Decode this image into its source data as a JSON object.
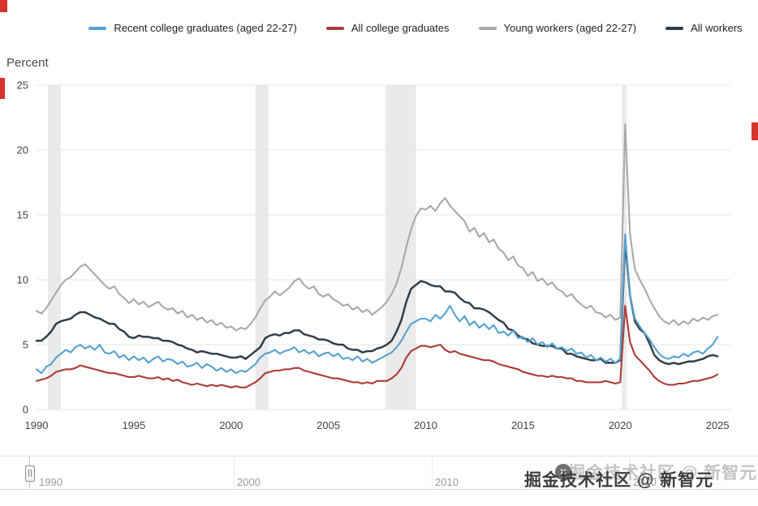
{
  "legend": {
    "items": [
      {
        "id": "recent-college-graduates",
        "label": "Recent college graduates (aged 22-27)",
        "color": "#55a1d1"
      },
      {
        "id": "all-college-graduates",
        "label": "All college graduates",
        "color": "#aa3c38"
      },
      {
        "id": "young-workers",
        "label": "Young workers (aged 22-27)",
        "color": "#a9a9a9"
      },
      {
        "id": "all-workers",
        "label": "All workers",
        "color": "#333e48"
      }
    ]
  },
  "chart_data": {
    "type": "line",
    "title": "",
    "xlabel": "",
    "ylabel": "Percent",
    "xlim": [
      1990,
      2025.66
    ],
    "ylim": [
      0,
      25
    ],
    "yticks": [
      0,
      5,
      10,
      15,
      20,
      25
    ],
    "xticks": [
      1990,
      1995,
      2000,
      2005,
      2010,
      2015,
      2020,
      2025
    ],
    "grid": "horizontal",
    "grid_color": "#e6e6e6",
    "recession_color": "#eaeaea",
    "recessions": [
      [
        1990.58,
        1991.25
      ],
      [
        2001.25,
        2001.92
      ],
      [
        2007.92,
        2009.5
      ],
      [
        2020.08,
        2020.33
      ]
    ],
    "x_start": 1990.0,
    "x_step": 0.25,
    "series": [
      {
        "id": "recent-college-graduates",
        "name": "Recent college graduates (aged 22-27)",
        "color": "#55a1d1",
        "width": 2.1,
        "z": 3,
        "values": [
          3.1,
          2.8,
          3.3,
          3.5,
          4.0,
          4.3,
          4.6,
          4.4,
          4.8,
          5.0,
          4.7,
          4.9,
          4.6,
          5.0,
          4.4,
          4.3,
          4.5,
          4.0,
          4.2,
          3.8,
          4.1,
          3.8,
          4.0,
          3.6,
          3.9,
          4.1,
          3.7,
          3.9,
          3.8,
          3.5,
          3.7,
          3.3,
          3.4,
          3.6,
          3.2,
          3.5,
          3.3,
          3.0,
          3.2,
          2.9,
          3.1,
          2.8,
          3.0,
          2.9,
          3.2,
          3.5,
          4.0,
          4.3,
          4.4,
          4.6,
          4.3,
          4.5,
          4.6,
          4.8,
          4.4,
          4.6,
          4.3,
          4.5,
          4.1,
          4.3,
          4.4,
          4.1,
          4.3,
          3.9,
          4.0,
          3.8,
          4.1,
          3.7,
          3.9,
          3.6,
          3.8,
          4.0,
          4.2,
          4.4,
          4.8,
          5.3,
          6.0,
          6.6,
          6.8,
          7.0,
          7.0,
          6.8,
          7.3,
          7.0,
          7.4,
          8.0,
          7.3,
          6.8,
          7.2,
          6.5,
          6.8,
          6.3,
          6.6,
          6.2,
          6.5,
          5.9,
          6.0,
          5.7,
          6.1,
          5.5,
          5.6,
          5.2,
          5.5,
          5.0,
          5.2,
          4.8,
          5.1,
          4.7,
          4.8,
          4.5,
          4.7,
          4.3,
          4.4,
          4.0,
          4.2,
          3.8,
          4.0,
          3.7,
          3.9,
          3.6,
          3.9,
          13.5,
          8.8,
          7.0,
          6.4,
          5.9,
          5.4,
          4.8,
          4.3,
          4.0,
          3.9,
          4.1,
          4.0,
          4.3,
          4.1,
          4.4,
          4.5,
          4.3,
          4.7,
          5.0,
          5.6
        ]
      },
      {
        "id": "all-college-graduates",
        "name": "All college graduates",
        "color": "#aa3c38",
        "width": 2.1,
        "z": 4,
        "values": [
          2.2,
          2.3,
          2.4,
          2.6,
          2.9,
          3.0,
          3.1,
          3.1,
          3.2,
          3.4,
          3.3,
          3.2,
          3.1,
          3.0,
          2.9,
          2.8,
          2.8,
          2.7,
          2.6,
          2.5,
          2.5,
          2.6,
          2.5,
          2.4,
          2.4,
          2.5,
          2.3,
          2.4,
          2.2,
          2.3,
          2.1,
          2.0,
          1.9,
          2.0,
          1.9,
          1.8,
          1.9,
          1.8,
          1.9,
          1.8,
          1.7,
          1.8,
          1.7,
          1.7,
          1.9,
          2.1,
          2.4,
          2.8,
          2.9,
          3.0,
          3.0,
          3.1,
          3.1,
          3.2,
          3.2,
          3.0,
          2.9,
          2.8,
          2.7,
          2.6,
          2.5,
          2.4,
          2.4,
          2.3,
          2.2,
          2.1,
          2.1,
          2.0,
          2.1,
          2.0,
          2.2,
          2.2,
          2.2,
          2.4,
          2.7,
          3.2,
          4.0,
          4.5,
          4.7,
          4.9,
          4.9,
          4.8,
          4.9,
          5.0,
          4.6,
          4.4,
          4.5,
          4.3,
          4.2,
          4.1,
          4.0,
          3.9,
          3.8,
          3.8,
          3.7,
          3.5,
          3.4,
          3.3,
          3.2,
          3.1,
          2.9,
          2.8,
          2.7,
          2.6,
          2.6,
          2.5,
          2.6,
          2.5,
          2.5,
          2.4,
          2.4,
          2.2,
          2.2,
          2.1,
          2.1,
          2.1,
          2.1,
          2.2,
          2.1,
          2.0,
          2.1,
          8.0,
          5.2,
          4.2,
          3.8,
          3.4,
          3.0,
          2.5,
          2.2,
          2.0,
          1.9,
          1.9,
          2.0,
          2.0,
          2.1,
          2.2,
          2.2,
          2.3,
          2.4,
          2.5,
          2.7
        ]
      },
      {
        "id": "young-workers",
        "name": "Young workers (aged 22-27)",
        "color": "#a9a9a9",
        "width": 2.1,
        "z": 1,
        "values": [
          7.6,
          7.4,
          7.8,
          8.4,
          9.0,
          9.6,
          10.0,
          10.2,
          10.6,
          11.0,
          11.2,
          10.8,
          10.4,
          10.0,
          9.6,
          9.3,
          9.5,
          8.9,
          8.6,
          8.2,
          8.5,
          8.1,
          8.3,
          7.9,
          8.1,
          8.3,
          7.9,
          7.7,
          7.8,
          7.4,
          7.6,
          7.1,
          7.3,
          6.9,
          7.1,
          6.7,
          6.9,
          6.5,
          6.7,
          6.3,
          6.4,
          6.1,
          6.3,
          6.2,
          6.6,
          7.1,
          7.8,
          8.4,
          8.7,
          9.1,
          8.8,
          9.1,
          9.4,
          9.9,
          10.1,
          9.6,
          9.3,
          9.5,
          8.9,
          8.7,
          8.9,
          8.5,
          8.3,
          8.0,
          8.1,
          7.7,
          7.9,
          7.5,
          7.7,
          7.3,
          7.6,
          7.9,
          8.3,
          8.9,
          9.7,
          10.9,
          12.5,
          13.9,
          14.9,
          15.5,
          15.4,
          15.7,
          15.3,
          15.9,
          16.3,
          15.7,
          15.3,
          14.9,
          14.5,
          13.7,
          14.0,
          13.3,
          13.6,
          12.9,
          13.1,
          12.4,
          12.1,
          11.5,
          11.8,
          11.1,
          10.9,
          10.3,
          10.6,
          9.9,
          10.1,
          9.6,
          9.8,
          9.3,
          9.1,
          8.7,
          8.9,
          8.4,
          8.1,
          7.8,
          8.0,
          7.5,
          7.4,
          7.1,
          7.3,
          6.9,
          7.1,
          22.0,
          13.5,
          10.8,
          10.0,
          9.3,
          8.5,
          7.8,
          7.2,
          6.8,
          6.6,
          6.9,
          6.5,
          6.8,
          6.6,
          7.0,
          6.8,
          7.1,
          6.9,
          7.2,
          7.3
        ]
      },
      {
        "id": "all-workers",
        "name": "All workers",
        "color": "#333e48",
        "width": 2.5,
        "z": 2,
        "values": [
          5.3,
          5.3,
          5.6,
          6.0,
          6.6,
          6.8,
          6.9,
          7.0,
          7.3,
          7.5,
          7.5,
          7.3,
          7.1,
          7.0,
          6.8,
          6.6,
          6.6,
          6.2,
          6.0,
          5.6,
          5.5,
          5.7,
          5.6,
          5.6,
          5.5,
          5.5,
          5.3,
          5.3,
          5.2,
          5.0,
          4.9,
          4.7,
          4.6,
          4.4,
          4.5,
          4.4,
          4.3,
          4.3,
          4.2,
          4.1,
          4.0,
          4.0,
          4.1,
          3.9,
          4.2,
          4.5,
          4.8,
          5.5,
          5.7,
          5.8,
          5.7,
          5.9,
          5.9,
          6.1,
          6.1,
          5.8,
          5.7,
          5.6,
          5.4,
          5.4,
          5.3,
          5.1,
          5.0,
          5.0,
          4.7,
          4.6,
          4.6,
          4.4,
          4.5,
          4.5,
          4.7,
          4.8,
          5.0,
          5.3,
          6.0,
          6.9,
          8.3,
          9.3,
          9.6,
          9.9,
          9.8,
          9.6,
          9.5,
          9.5,
          9.1,
          9.1,
          9.0,
          8.6,
          8.3,
          8.2,
          7.8,
          7.8,
          7.7,
          7.5,
          7.2,
          6.9,
          6.7,
          6.2,
          6.1,
          5.7,
          5.5,
          5.4,
          5.1,
          5.0,
          4.9,
          4.9,
          4.9,
          4.7,
          4.7,
          4.3,
          4.3,
          4.1,
          4.0,
          3.9,
          3.8,
          3.8,
          3.9,
          3.6,
          3.6,
          3.6,
          3.8,
          13.0,
          8.8,
          6.8,
          6.2,
          5.9,
          5.1,
          4.2,
          3.8,
          3.6,
          3.5,
          3.6,
          3.5,
          3.6,
          3.7,
          3.7,
          3.8,
          3.9,
          4.1,
          4.2,
          4.1
        ]
      }
    ]
  },
  "navigator": {
    "labels": [
      "1990",
      "2000",
      "2010",
      "2020"
    ]
  },
  "watermark": {
    "main": "掘金技术社区 @ 新智元",
    "echo": "掘金技术社区 @ 新智元",
    "icon": "✕"
  }
}
